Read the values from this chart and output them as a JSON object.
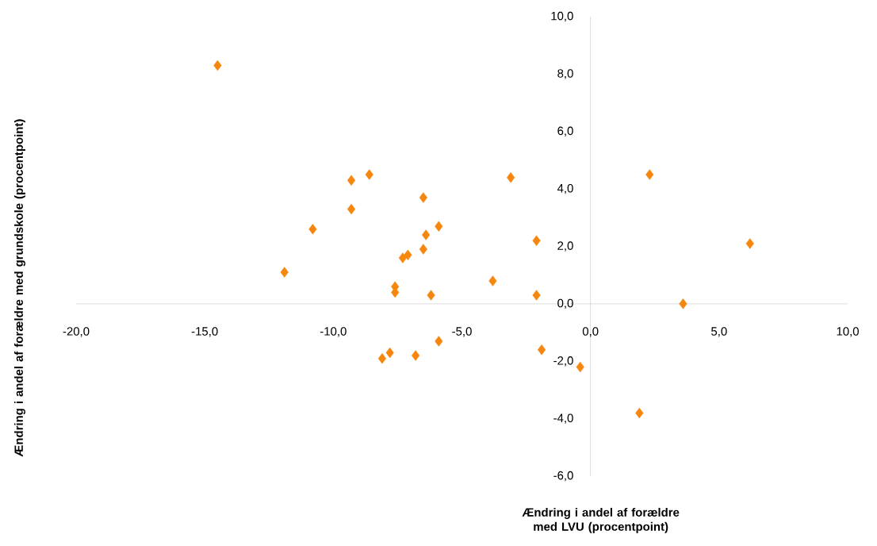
{
  "chart_data": {
    "type": "scatter",
    "xlabel": "Ændring i andel af forældre med LVU (procentpoint)",
    "ylabel": "Ændring i andel af forældre med grundskole (procentpoint)",
    "xlim": [
      -20,
      10
    ],
    "ylim": [
      -6,
      10
    ],
    "xticks": [
      {
        "value": -20,
        "label": "-20,0"
      },
      {
        "value": -15,
        "label": "-15,0"
      },
      {
        "value": -10,
        "label": "-10,0"
      },
      {
        "value": -5,
        "label": "-5,0"
      },
      {
        "value": 0,
        "label": "0,0"
      },
      {
        "value": 5,
        "label": "5,0"
      },
      {
        "value": 10,
        "label": "10,0"
      }
    ],
    "yticks": [
      {
        "value": -6,
        "label": "-6,0"
      },
      {
        "value": -4,
        "label": "-4,0"
      },
      {
        "value": -2,
        "label": "-2,0"
      },
      {
        "value": 0,
        "label": "0,0"
      },
      {
        "value": 2,
        "label": "2,0"
      },
      {
        "value": 4,
        "label": "4,0"
      },
      {
        "value": 6,
        "label": "6,0"
      },
      {
        "value": 8,
        "label": "8,0"
      },
      {
        "value": 10,
        "label": "10,0"
      }
    ],
    "marker": "diamond",
    "grid": false,
    "series": [
      {
        "color": "#f5870f",
        "x": [
          -14.5,
          -8.6,
          -9.3,
          -9.3,
          -10.8,
          -11.9,
          -6.5,
          -5.9,
          -6.4,
          -6.5,
          -7.1,
          -7.3,
          -7.6,
          -7.6,
          -6.2,
          -3.8,
          -3.1,
          -2.1,
          -2.1,
          -1.9,
          -5.9,
          -6.8,
          -7.8,
          -8.1,
          -0.4,
          1.9,
          2.3,
          3.6,
          6.2
        ],
        "values": [
          8.3,
          4.5,
          4.3,
          3.3,
          2.6,
          1.1,
          3.7,
          2.7,
          2.4,
          1.9,
          1.7,
          1.6,
          0.6,
          0.4,
          0.3,
          0.8,
          4.4,
          2.2,
          0.3,
          -1.6,
          -1.3,
          -1.8,
          -1.7,
          -1.9,
          -2.2,
          -3.8,
          4.5,
          0.0,
          2.1
        ]
      }
    ]
  }
}
